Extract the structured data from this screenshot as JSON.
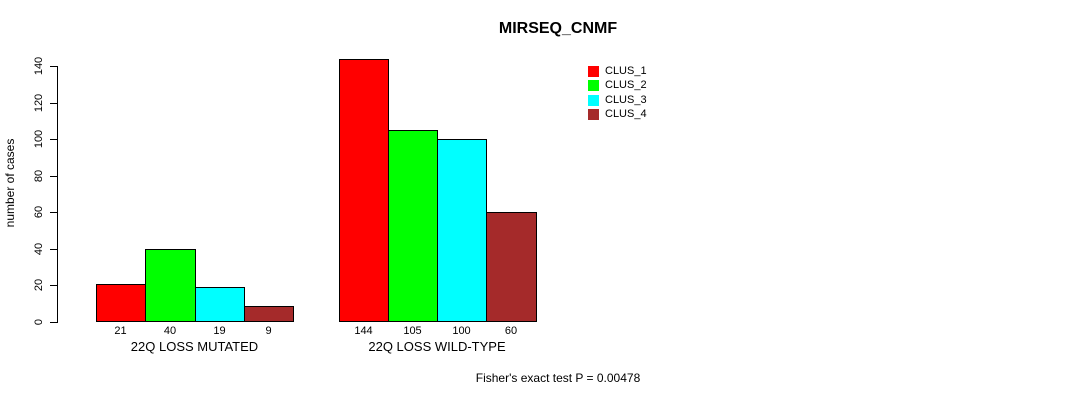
{
  "page": {
    "background_color": "#ffffff",
    "text_color": "#000000"
  },
  "chart_data": {
    "type": "bar",
    "title": "MIRSEQ_CNMF",
    "xlabel": "",
    "ylabel": "number of cases",
    "ylim": [
      0,
      140
    ],
    "yticks": [
      0,
      20,
      40,
      60,
      80,
      100,
      120,
      140
    ],
    "grid": false,
    "bar_value_labels_shown": true,
    "categories": [
      "22Q LOSS MUTATED",
      "22Q LOSS WILD-TYPE"
    ],
    "series": [
      {
        "name": "CLUS_1",
        "color": "#FF0000",
        "values": [
          21,
          144
        ]
      },
      {
        "name": "CLUS_2",
        "color": "#00FF00",
        "values": [
          40,
          105
        ]
      },
      {
        "name": "CLUS_3",
        "color": "#00FFFF",
        "values": [
          19,
          100
        ]
      },
      {
        "name": "CLUS_4",
        "color": "#A52A2A",
        "values": [
          9,
          60
        ]
      }
    ],
    "legend_position": "topright",
    "annotation": "Fisher's exact test P = 0.00478"
  }
}
